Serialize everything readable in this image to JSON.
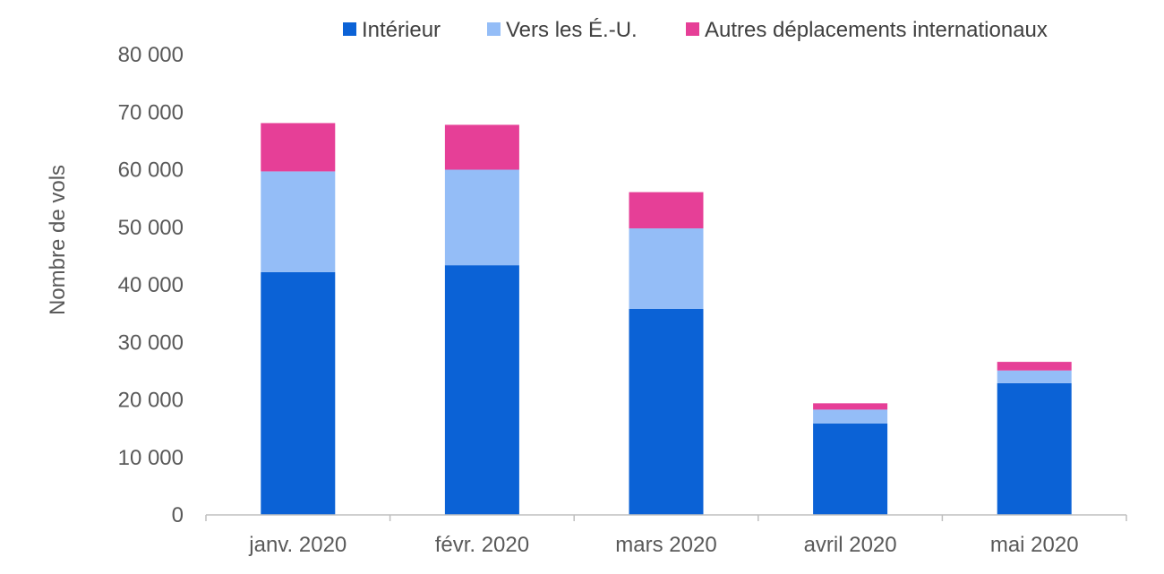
{
  "chart_data": {
    "type": "bar",
    "stacked": true,
    "title": "",
    "xlabel": "",
    "ylabel": "Nombre de vols",
    "categories": [
      "janv. 2020",
      "févr. 2020",
      "mars 2020",
      "avril 2020",
      "mai 2020"
    ],
    "series": [
      {
        "name": "Intérieur",
        "color": "#0b62d6",
        "values": [
          42200,
          43400,
          35800,
          15900,
          22900
        ]
      },
      {
        "name": "Vers les É.-U.",
        "color": "#94bdf7",
        "values": [
          17500,
          16600,
          14000,
          2400,
          2200
        ]
      },
      {
        "name": "Autres déplacements internationaux",
        "color": "#e63f97",
        "values": [
          8400,
          7800,
          6300,
          1100,
          1500
        ]
      }
    ],
    "ylim": [
      0,
      80000
    ],
    "yticks": [
      0,
      10000,
      20000,
      30000,
      40000,
      50000,
      60000,
      70000,
      80000
    ],
    "ytick_labels": [
      "0",
      "10 000",
      "20 000",
      "30 000",
      "40 000",
      "50 000",
      "60 000",
      "70 000",
      "80 000"
    ],
    "legend_position": "top",
    "grid": false
  }
}
